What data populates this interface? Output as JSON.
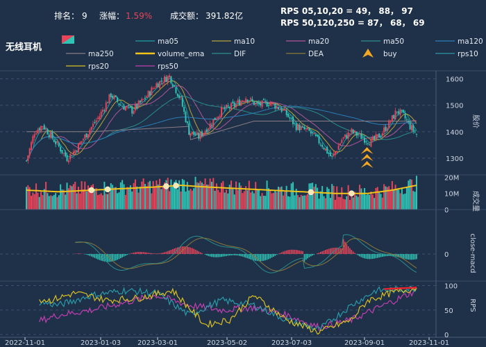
{
  "header": {
    "rank_label": "排名：",
    "rank_value": "9",
    "change_label": "涨幅：",
    "change_value": "1.59%",
    "volume_label": "成交额：",
    "volume_value": "391.82亿",
    "rps_short": "RPS 05,10,20 = 49， 88， 97",
    "rps_long": "RPS 50,120,250 = 87， 68， 69",
    "sector_name": "无线耳机"
  },
  "colors": {
    "background": "#1f3049",
    "up": "#e8455a",
    "down": "#2ec4b6",
    "change_text": "#e8455a",
    "volume_ema": "#f2c417",
    "buy_marker": "#f5a623"
  },
  "legend": [
    {
      "label": "ma05",
      "color": "#1aa3a3"
    },
    {
      "label": "ma10",
      "color": "#b9a33a"
    },
    {
      "label": "ma20",
      "color": "#b0569c"
    },
    {
      "label": "ma50",
      "color": "#2a8f8a"
    },
    {
      "label": "ma120",
      "color": "#2b7fb8"
    },
    {
      "label": "ma250",
      "color": "#8a7d84"
    },
    {
      "label": "volume_ema",
      "color": "#f2c417"
    },
    {
      "label": "DIF",
      "color": "#2a8f8a"
    },
    {
      "label": "DEA",
      "color": "#8a7a3a"
    },
    {
      "label": "buy",
      "color": "#f5a623"
    },
    {
      "label": "rps10",
      "color": "#2a9aa8"
    },
    {
      "label": "rps20",
      "color": "#d9c022"
    },
    {
      "label": "rps50",
      "color": "#c23fb0"
    }
  ],
  "chart_data": {
    "type": "candlestick",
    "x_tick_labels": [
      "2022-11-01",
      "2023-01-03",
      "2023-03-01",
      "2023-05-02",
      "2023-07-03",
      "2023-09-01",
      "2023-11-01"
    ],
    "price_axis": {
      "label": "股价",
      "ticks": [
        1300,
        1400,
        1500,
        1600
      ],
      "ylim": [
        1250,
        1625
      ]
    },
    "volume_axis": {
      "label": "成交量",
      "ticks": [
        "0",
        "10M",
        "20M"
      ],
      "ylim": [
        0,
        24
      ]
    },
    "macd_axis": {
      "label": "close-macd",
      "ticks": [
        "0"
      ]
    },
    "rps_axis": {
      "label": "RPS",
      "ticks": [
        0,
        50,
        100
      ],
      "ylim": [
        0,
        105
      ]
    },
    "price_anchors": [
      [
        0,
        1290
      ],
      [
        5,
        1400
      ],
      [
        10,
        1425
      ],
      [
        18,
        1360
      ],
      [
        25,
        1300
      ],
      [
        30,
        1330
      ],
      [
        38,
        1400
      ],
      [
        45,
        1460
      ],
      [
        52,
        1540
      ],
      [
        58,
        1500
      ],
      [
        65,
        1480
      ],
      [
        72,
        1520
      ],
      [
        80,
        1580
      ],
      [
        88,
        1610
      ],
      [
        95,
        1520
      ],
      [
        100,
        1400
      ],
      [
        106,
        1380
      ],
      [
        112,
        1420
      ],
      [
        120,
        1480
      ],
      [
        128,
        1500
      ],
      [
        135,
        1530
      ],
      [
        142,
        1500
      ],
      [
        150,
        1510
      ],
      [
        158,
        1480
      ],
      [
        166,
        1420
      ],
      [
        174,
        1400
      ],
      [
        182,
        1350
      ],
      [
        188,
        1300
      ],
      [
        194,
        1370
      ],
      [
        200,
        1400
      ],
      [
        206,
        1380
      ],
      [
        212,
        1360
      ],
      [
        218,
        1390
      ],
      [
        224,
        1440
      ],
      [
        228,
        1480
      ],
      [
        232,
        1460
      ],
      [
        236,
        1420
      ],
      [
        240,
        1390
      ]
    ],
    "volume_ema_anchors": [
      [
        0,
        12
      ],
      [
        20,
        11
      ],
      [
        40,
        12
      ],
      [
        60,
        13
      ],
      [
        80,
        14
      ],
      [
        95,
        15
      ],
      [
        110,
        14
      ],
      [
        130,
        13
      ],
      [
        150,
        12
      ],
      [
        170,
        11
      ],
      [
        190,
        10
      ],
      [
        210,
        10
      ],
      [
        225,
        12
      ],
      [
        240,
        15
      ]
    ],
    "buy_signals": [
      230
    ],
    "rps": {
      "rps10": [
        [
          0,
          70
        ],
        [
          20,
          60
        ],
        [
          40,
          80
        ],
        [
          60,
          90
        ],
        [
          80,
          85
        ],
        [
          100,
          40
        ],
        [
          120,
          70
        ],
        [
          140,
          60
        ],
        [
          160,
          30
        ],
        [
          180,
          10
        ],
        [
          200,
          60
        ],
        [
          215,
          90
        ],
        [
          230,
          92
        ],
        [
          240,
          95
        ]
      ],
      "rps20": [
        [
          0,
          75
        ],
        [
          15,
          70
        ],
        [
          30,
          85
        ],
        [
          50,
          70
        ],
        [
          70,
          75
        ],
        [
          90,
          90
        ],
        [
          110,
          20
        ],
        [
          125,
          30
        ],
        [
          140,
          80
        ],
        [
          160,
          30
        ],
        [
          180,
          5
        ],
        [
          200,
          30
        ],
        [
          210,
          70
        ],
        [
          225,
          85
        ],
        [
          240,
          95
        ]
      ],
      "rps50": [
        [
          0,
          20
        ],
        [
          20,
          40
        ],
        [
          40,
          50
        ],
        [
          60,
          65
        ],
        [
          80,
          80
        ],
        [
          100,
          60
        ],
        [
          120,
          50
        ],
        [
          140,
          55
        ],
        [
          160,
          40
        ],
        [
          180,
          15
        ],
        [
          200,
          30
        ],
        [
          220,
          60
        ],
        [
          240,
          90
        ]
      ]
    }
  }
}
